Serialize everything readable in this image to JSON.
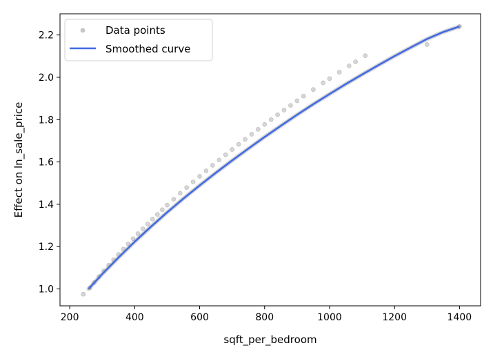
{
  "chart_data": {
    "type": "scatter",
    "title": "",
    "xlabel": "sqft_per_bedroom",
    "ylabel": "Effect on ln_sale_price",
    "xlim": [
      170,
      1465
    ],
    "ylim": [
      0.92,
      2.3
    ],
    "xticks": [
      200,
      400,
      600,
      800,
      1000,
      1200,
      1400
    ],
    "yticks": [
      1.0,
      1.2,
      1.4,
      1.6,
      1.8,
      2.0,
      2.2
    ],
    "xtick_labels": [
      "200",
      "400",
      "600",
      "800",
      "1000",
      "1200",
      "1400"
    ],
    "ytick_labels": [
      "1.0",
      "1.2",
      "1.4",
      "1.6",
      "1.8",
      "2.0",
      "2.2"
    ],
    "grid": false,
    "legend_position": "top-left",
    "colors": {
      "points": "#c8c8c8",
      "points_edge": "#b8b8b8",
      "curve": "#4169e1",
      "overlap": "#8a8a8a"
    },
    "series": [
      {
        "name": "Data points",
        "kind": "scatter",
        "x": [
          242,
          262,
          275,
          290,
          305,
          320,
          335,
          350,
          365,
          380,
          395,
          410,
          425,
          440,
          455,
          470,
          485,
          500,
          520,
          540,
          560,
          580,
          600,
          620,
          640,
          660,
          680,
          700,
          720,
          740,
          760,
          780,
          800,
          820,
          840,
          860,
          880,
          900,
          920,
          950,
          980,
          1000,
          1030,
          1060,
          1080,
          1110,
          1300,
          1400
        ],
        "y": [
          0.975,
          1.005,
          1.03,
          1.058,
          1.085,
          1.112,
          1.138,
          1.163,
          1.188,
          1.213,
          1.237,
          1.261,
          1.284,
          1.307,
          1.33,
          1.352,
          1.374,
          1.396,
          1.424,
          1.452,
          1.479,
          1.506,
          1.532,
          1.558,
          1.584,
          1.609,
          1.634,
          1.659,
          1.683,
          1.707,
          1.731,
          1.754,
          1.777,
          1.8,
          1.823,
          1.845,
          1.867,
          1.889,
          1.911,
          1.942,
          1.974,
          1.994,
          2.024,
          2.054,
          2.073,
          2.102,
          2.155,
          2.24
        ]
      },
      {
        "name": "Smoothed curve",
        "kind": "line",
        "x": [
          258,
          300,
          350,
          400,
          450,
          500,
          550,
          600,
          650,
          700,
          750,
          800,
          850,
          900,
          950,
          1000,
          1050,
          1100,
          1150,
          1200,
          1250,
          1300,
          1350,
          1400
        ],
        "y": [
          1.0,
          1.07,
          1.148,
          1.223,
          1.294,
          1.362,
          1.427,
          1.489,
          1.549,
          1.607,
          1.663,
          1.718,
          1.771,
          1.823,
          1.873,
          1.921,
          1.968,
          2.013,
          2.057,
          2.1,
          2.141,
          2.181,
          2.214,
          2.24
        ]
      }
    ]
  }
}
